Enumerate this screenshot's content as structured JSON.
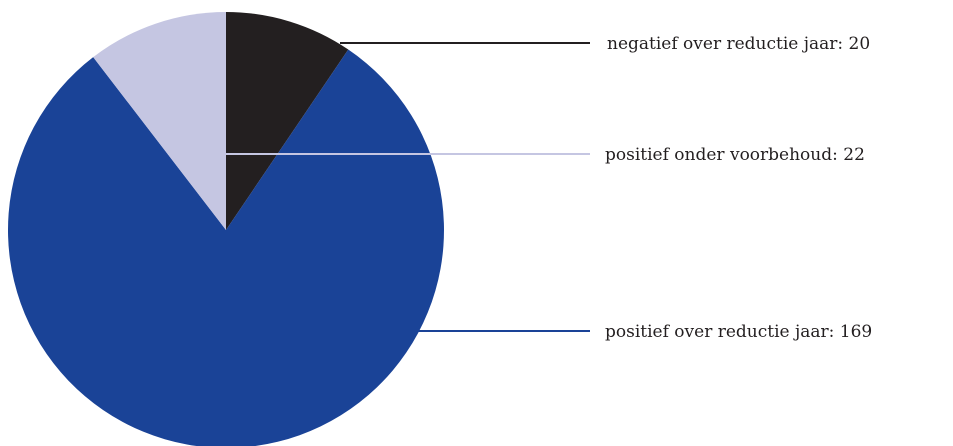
{
  "chart_data": {
    "type": "pie",
    "title": "",
    "slices": [
      {
        "name": "negatief over reductie jaar",
        "value": 20,
        "label": "negatief over reductie jaar: 20",
        "color": "#231f20"
      },
      {
        "name": "positief over reductie jaar",
        "value": 169,
        "label": "positief over reductie jaar: 169",
        "color": "#1a4397"
      },
      {
        "name": "positief onder voorbehoud",
        "value": 22,
        "label": "positief onder voorbehoud: 22",
        "color": "#c5c6e2"
      }
    ],
    "start_angle": "12 o'clock",
    "direction": "clockwise",
    "legend": "callout labels right"
  }
}
